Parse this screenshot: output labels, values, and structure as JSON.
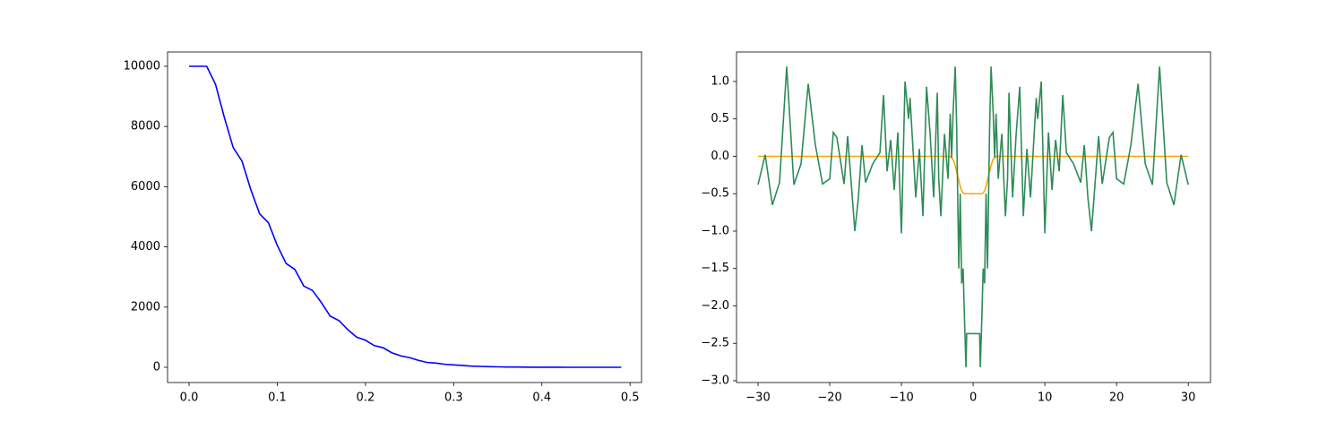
{
  "chart_data": [
    {
      "type": "line",
      "x": [
        0,
        0.01,
        0.02,
        0.03,
        0.04,
        0.05,
        0.06,
        0.07,
        0.08,
        0.09,
        0.1,
        0.11,
        0.12,
        0.13,
        0.14,
        0.15,
        0.16,
        0.17,
        0.18,
        0.19,
        0.2,
        0.21,
        0.22,
        0.23,
        0.24,
        0.25,
        0.26,
        0.27,
        0.28,
        0.29,
        0.3,
        0.31,
        0.32,
        0.33,
        0.34,
        0.35,
        0.36,
        0.37,
        0.38,
        0.39,
        0.4,
        0.41,
        0.42,
        0.43,
        0.44,
        0.45,
        0.46,
        0.47,
        0.48,
        0.49
      ],
      "series": [
        {
          "color": "#0000ff",
          "values": [
            10000,
            10000,
            10000,
            9400,
            8300,
            7300,
            6850,
            5900,
            5100,
            4800,
            4050,
            3450,
            3250,
            2700,
            2550,
            2150,
            1700,
            1550,
            1250,
            1000,
            900,
            720,
            650,
            480,
            380,
            320,
            230,
            160,
            140,
            100,
            80,
            60,
            40,
            30,
            20,
            15,
            10,
            8,
            5,
            3,
            2,
            1,
            1,
            0,
            0,
            0,
            0,
            0,
            0,
            0
          ]
        }
      ],
      "xlim": [
        -0.0244,
        0.513
      ],
      "ylim": [
        -506,
        10476
      ],
      "xticks": [
        {
          "value": 0,
          "label": "0.0"
        },
        {
          "value": 0.1,
          "label": "0.1"
        },
        {
          "value": 0.2,
          "label": "0.2"
        },
        {
          "value": 0.3,
          "label": "0.3"
        },
        {
          "value": 0.4,
          "label": "0.4"
        },
        {
          "value": 0.5,
          "label": "0.5"
        }
      ],
      "yticks": [
        0,
        2000,
        4000,
        6000,
        8000,
        10000
      ]
    },
    {
      "type": "line",
      "x": [
        -30,
        -29,
        -28,
        -27,
        -26,
        -25,
        -24,
        -23,
        -22,
        -21,
        -20,
        -19.5,
        -19,
        -18,
        -17.5,
        -16.5,
        -16,
        -15.5,
        -15,
        -14,
        -13,
        -12.5,
        -12,
        -11.5,
        -11,
        -10.5,
        -10,
        -9.5,
        -9,
        -8.8,
        -8,
        -7.5,
        -7,
        -6.5,
        -6,
        -5.5,
        -5,
        -4.8,
        -4.5,
        -4,
        -3.5,
        -3.2,
        -3,
        -2.8,
        -2.5,
        -2.3,
        -2,
        -1.8,
        -1.6,
        -1.4,
        -1.2,
        -1,
        -0.9,
        0.9,
        1,
        1.2,
        1.4,
        1.6,
        1.8,
        2,
        2.3,
        2.5,
        2.8,
        3,
        3.2,
        3.5,
        4,
        4.5,
        4.8,
        5,
        5.5,
        6,
        6.5,
        7,
        7.5,
        8,
        8.8,
        9,
        9.5,
        10,
        10.5,
        11,
        11.5,
        12,
        12.5,
        13,
        14,
        15,
        15.5,
        16,
        16.5,
        17.5,
        18,
        19,
        19.5,
        20,
        21,
        22,
        23,
        24,
        25,
        26,
        27,
        28,
        29,
        30
      ],
      "series": [
        {
          "color": "#ffa500",
          "values": [
            0,
            0,
            0,
            0,
            0,
            0,
            0,
            0,
            0,
            0,
            0,
            0,
            0,
            0,
            0,
            0,
            0,
            0,
            0,
            0,
            0,
            0,
            0,
            0,
            0,
            0,
            0,
            0,
            0,
            0,
            0,
            0,
            0,
            0,
            0,
            0,
            0,
            0,
            0,
            0,
            0,
            0,
            -0.02,
            -0.04,
            -0.12,
            -0.2,
            -0.32,
            -0.4,
            -0.46,
            -0.49,
            -0.5,
            -0.5,
            -0.5,
            -0.5,
            -0.5,
            -0.5,
            -0.49,
            -0.46,
            -0.4,
            -0.32,
            -0.2,
            -0.12,
            -0.04,
            -0.02,
            0,
            0,
            0,
            0,
            0,
            0,
            0,
            0,
            0,
            0,
            0,
            0,
            0,
            0,
            0,
            0,
            0,
            0,
            0,
            0,
            0,
            0,
            0,
            0,
            0,
            0,
            0,
            0,
            0,
            0,
            0,
            0,
            0,
            0,
            0,
            0,
            0,
            0,
            0,
            0,
            0,
            0
          ]
        },
        {
          "color": "#2e8b57",
          "values": [
            -0.38,
            0.02,
            -0.65,
            -0.35,
            1.2,
            -0.38,
            -0.1,
            0.97,
            0.15,
            -0.37,
            -0.3,
            0.32,
            0.25,
            -0.37,
            0.27,
            -1.0,
            -0.55,
            0.15,
            -0.35,
            -0.1,
            0.05,
            0.82,
            -0.2,
            0.22,
            -0.45,
            0.32,
            -1.03,
            1.0,
            0.5,
            0.78,
            -0.55,
            0.1,
            -0.8,
            0.93,
            0.3,
            -0.55,
            0.85,
            -0.3,
            -0.8,
            0.3,
            -0.3,
            0.57,
            -0.02,
            0.57,
            1.2,
            0.4,
            -1.5,
            -0.5,
            -1.7,
            -1.5,
            -2.2,
            -2.82,
            -2.37,
            -2.37,
            -2.82,
            -2.2,
            -1.5,
            -1.7,
            -0.5,
            -1.5,
            0.4,
            1.2,
            0.57,
            -0.02,
            0.57,
            -0.3,
            0.3,
            -0.8,
            -0.3,
            0.85,
            -0.55,
            0.3,
            0.93,
            -0.8,
            0.1,
            -0.55,
            0.78,
            0.5,
            1.0,
            -1.03,
            0.32,
            -0.45,
            0.22,
            -0.2,
            0.82,
            0.05,
            -0.1,
            -0.35,
            0.15,
            -0.55,
            -1.0,
            0.27,
            -0.37,
            0.25,
            0.32,
            -0.3,
            -0.37,
            0.15,
            0.97,
            -0.1,
            -0.38,
            1.2,
            -0.35,
            -0.65,
            0.02,
            -0.38
          ]
        }
      ],
      "xlim": [
        -33,
        33.1
      ],
      "ylim": [
        -3.024,
        1.395
      ],
      "xticks": [
        {
          "value": -30,
          "label": "−30"
        },
        {
          "value": -20,
          "label": "−20"
        },
        {
          "value": -10,
          "label": "−10"
        },
        0,
        10,
        20,
        30
      ],
      "yticks": [
        {
          "value": -3,
          "label": "−3.0"
        },
        {
          "value": -2.5,
          "label": "−2.5"
        },
        {
          "value": -2,
          "label": "−2.0"
        },
        {
          "value": -1.5,
          "label": "−1.5"
        },
        {
          "value": -1,
          "label": "−1.0"
        },
        {
          "value": -0.5,
          "label": "−0.5"
        },
        {
          "value": 0,
          "label": "0.0"
        },
        {
          "value": 0.5,
          "label": "0.5"
        },
        {
          "value": 1,
          "label": "1.0"
        }
      ]
    }
  ]
}
